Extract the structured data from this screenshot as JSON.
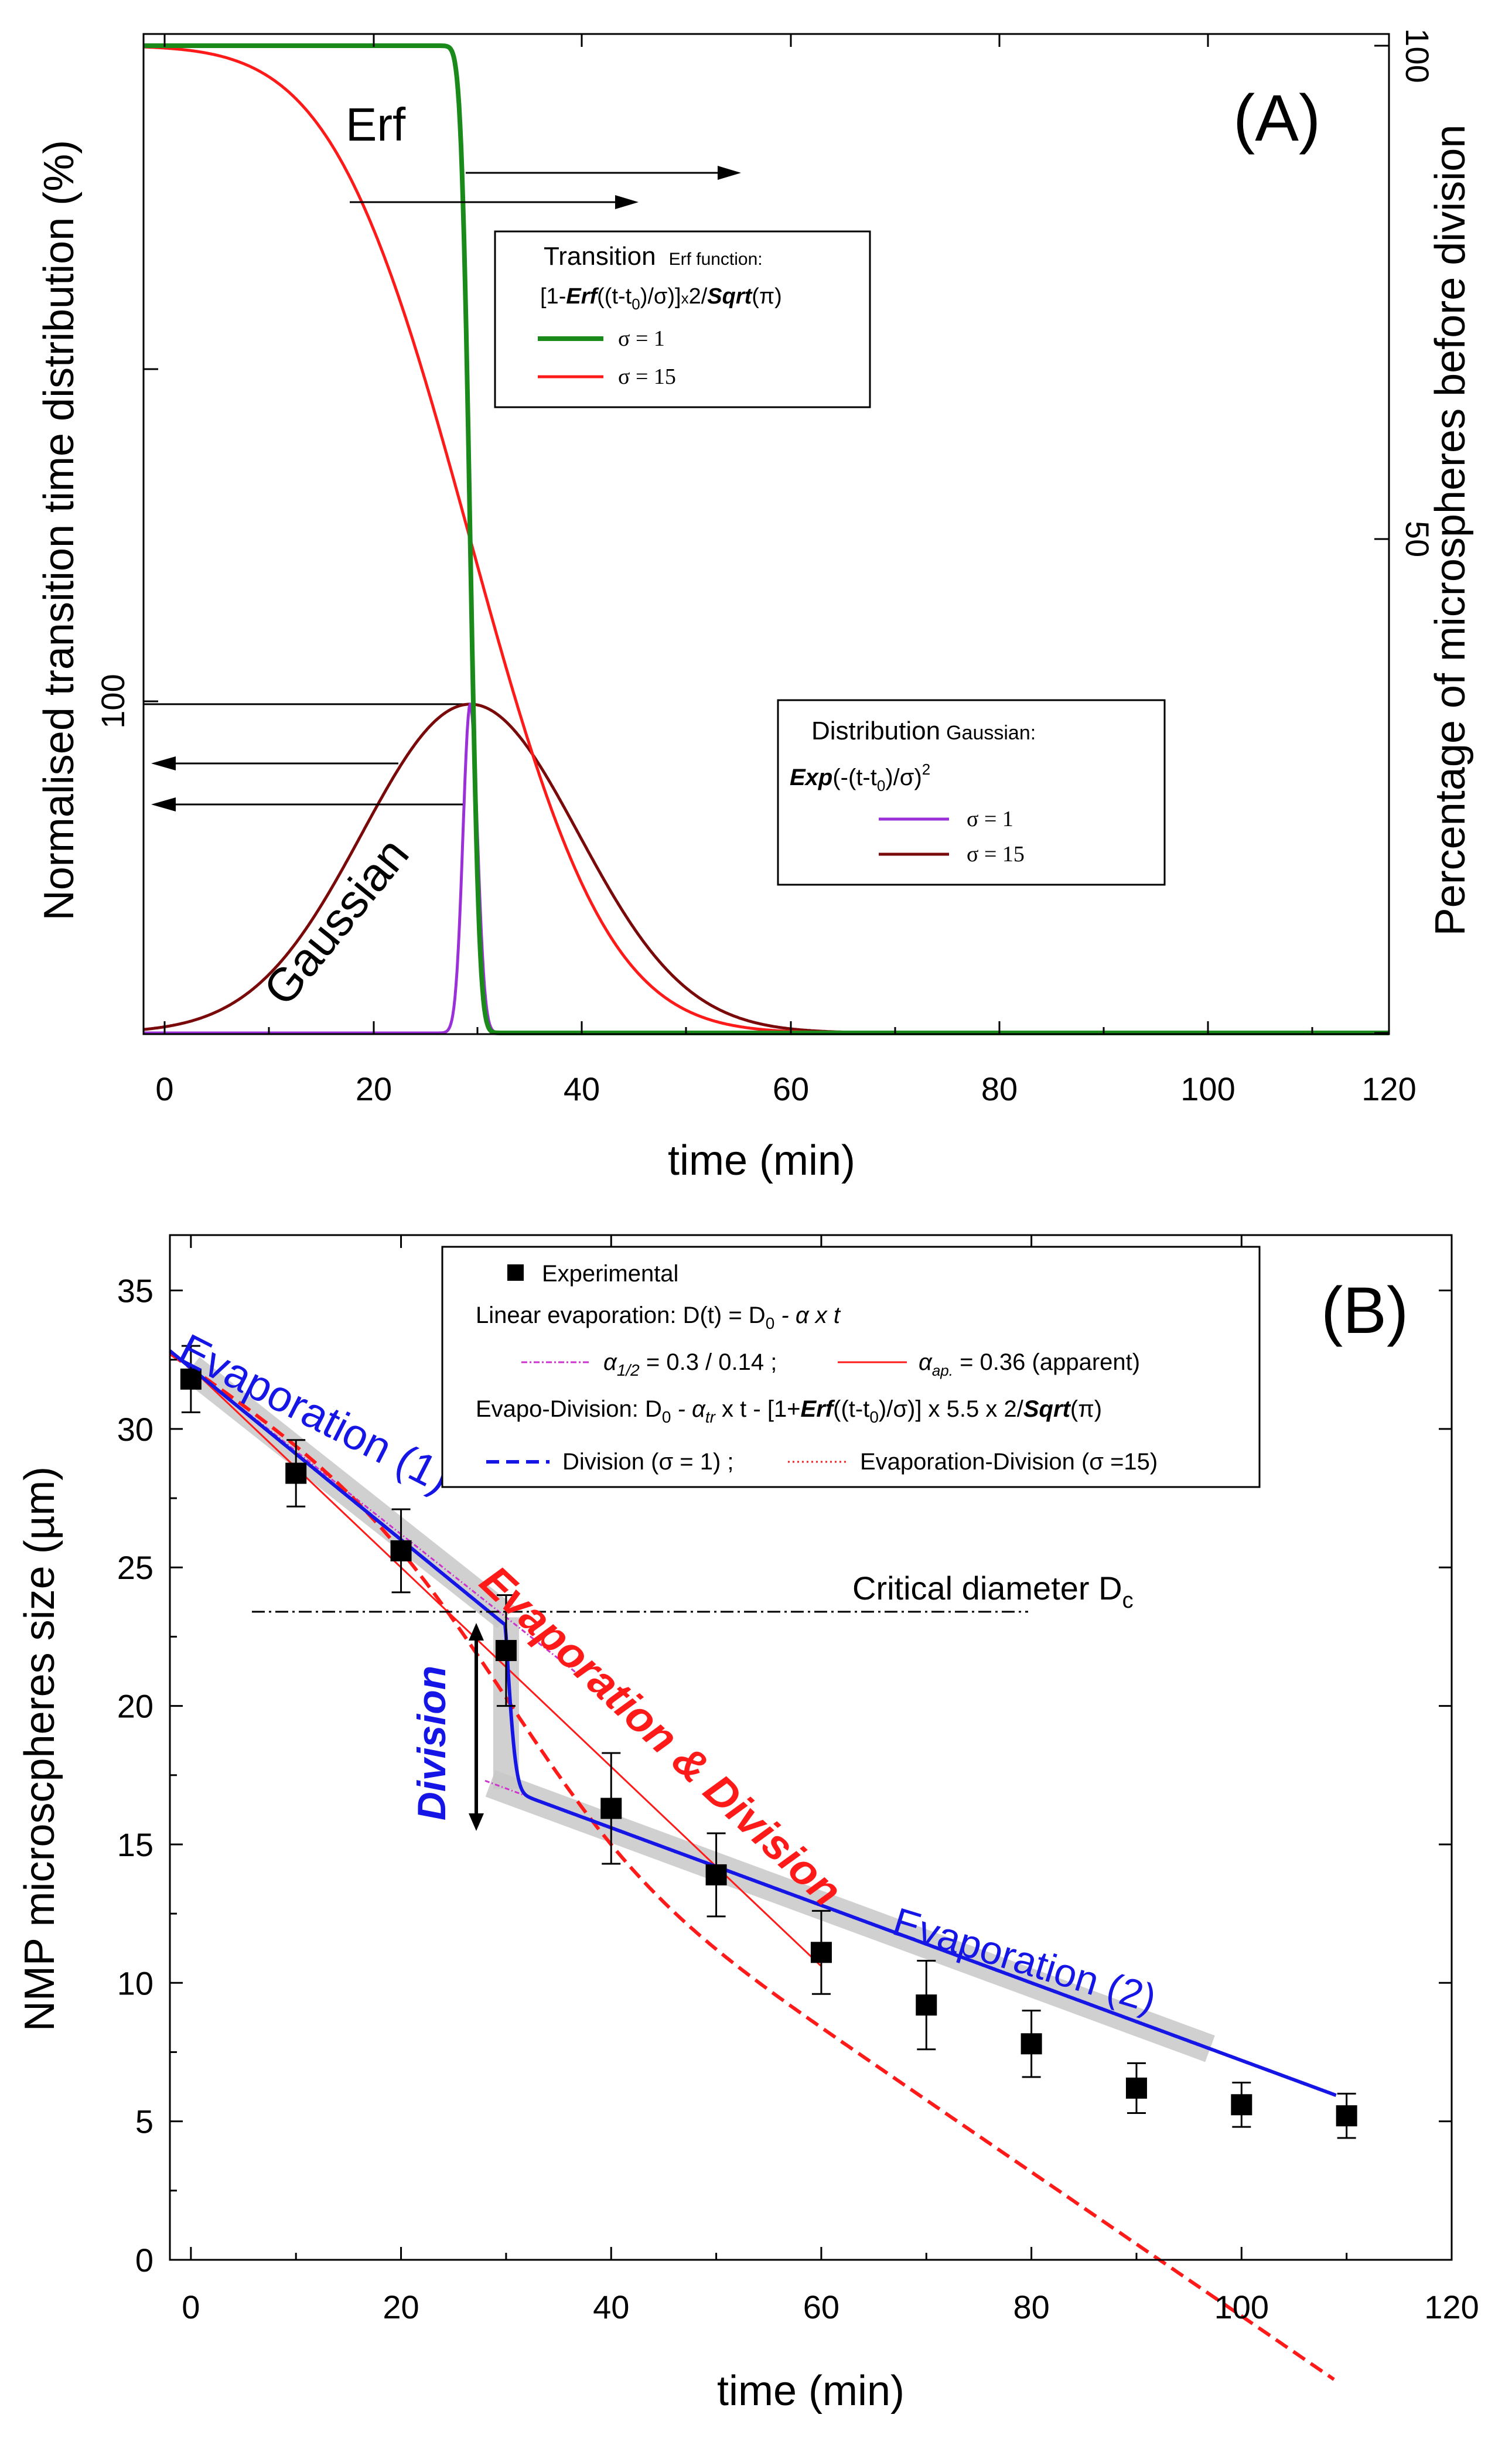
{
  "chart_data": [
    {
      "panel_label": "(A)",
      "type": "line",
      "title": "",
      "xlabel": "time (min)",
      "ylabel_left": "Normalised transition time distribution (%)",
      "ylabel_right": "Percentage of microspheres before division",
      "xlim": [
        -2,
        120
      ],
      "ylim": [
        0,
        100
      ],
      "xticks": [
        "0",
        "20",
        "40",
        "60",
        "80",
        "100",
        "120"
      ],
      "left_tick_labels": [
        {
          "value": 33.3,
          "label": "100"
        }
      ],
      "right_tick_labels": [
        {
          "value": 100,
          "label": "100"
        },
        {
          "value": 50,
          "label": "50"
        }
      ],
      "t0": 30,
      "annotations": {
        "erf": "Erf",
        "gaussian": "Gaussian"
      },
      "legend_erf": {
        "title_main": "Transition",
        "title_small": "Erf function:",
        "formula_parts": [
          "[1-",
          "Erf",
          "((t-t",
          "0",
          ")/σ)]",
          "x",
          "2/",
          "Sqrt",
          "(π)"
        ],
        "entries": [
          {
            "label": "σ = 1",
            "color": "#1a8a1a"
          },
          {
            "label": "σ = 15",
            "color": "#ff1a1a"
          }
        ]
      },
      "legend_gauss": {
        "title_main": "Distribution",
        "title_small": "Gaussian:",
        "formula_parts": [
          "Exp",
          "(-(t-t",
          "0",
          ")/σ)",
          "2"
        ],
        "entries": [
          {
            "label": "σ = 1",
            "color": "#9b30d9"
          },
          {
            "label": "σ = 15",
            "color": "#7a0a0a"
          }
        ]
      },
      "series": [
        {
          "name": "Erf σ = 1",
          "kind": "erf",
          "sigma": 1,
          "axis": "right",
          "color": "#1a8a1a"
        },
        {
          "name": "Erf σ = 15",
          "kind": "erf",
          "sigma": 15,
          "axis": "right",
          "color": "#ff1a1a"
        },
        {
          "name": "Gaussian σ = 1",
          "kind": "gauss",
          "sigma": 1,
          "axis": "left",
          "peak": 33.3,
          "color": "#9b30d9"
        },
        {
          "name": "Gaussian σ = 15",
          "kind": "gauss",
          "sigma": 15,
          "axis": "left",
          "peak": 33.3,
          "color": "#7a0a0a"
        }
      ]
    },
    {
      "panel_label": "(B)",
      "type": "scatter",
      "title": "",
      "xlabel": "time (min)",
      "ylabel": "NMP microscpheres size (µm)",
      "xlim": [
        -2,
        120
      ],
      "ylim": [
        0,
        37
      ],
      "xticks": [
        0,
        20,
        40,
        60,
        80,
        100,
        120
      ],
      "yticks": [
        0,
        5,
        10,
        15,
        20,
        25,
        30,
        35
      ],
      "experimental": {
        "x": [
          0,
          10,
          20,
          30,
          40,
          50,
          60,
          70,
          80,
          90,
          100,
          110
        ],
        "y": [
          31.8,
          28.4,
          25.6,
          22.0,
          16.3,
          13.9,
          11.1,
          9.2,
          7.8,
          6.2,
          5.6,
          5.2
        ],
        "err": [
          1.2,
          1.2,
          1.5,
          2.0,
          2.0,
          1.5,
          1.5,
          1.6,
          1.2,
          0.9,
          0.8,
          0.8
        ]
      },
      "critical_diameter": {
        "value": 23.4,
        "label": "Critical diameter D",
        "sub": "c"
      },
      "annotations": {
        "evaporation_1": "Evaporation (1)",
        "evaporation_2": "Evaporation (2)",
        "division": "Division",
        "evap_division": "Evaporation & Division"
      },
      "legend": {
        "experimental": "Experimental",
        "linear_evaporation": "Linear evaporation: D(t) = D",
        "linear_sub": "0",
        "linear_rest": " -  α x t",
        "alpha_half_pre": "α",
        "alpha_half_sub": "1/2",
        "alpha_half_post": " = 0.3 / 0.14 ;",
        "alpha_ap_pre": "α",
        "alpha_ap_sub": "ap.",
        "alpha_ap_post": " = 0.36 (apparent)",
        "evapo_division": "Evapo-Division: D",
        "evapo_sub": "0",
        "evapo_mid": " -  α",
        "evapo_tr": "tr",
        "evapo_rest": " x t  - [1+",
        "evapo_erf": "Erf",
        "evapo_rest2": "((t-t",
        "evapo_sub2": "0",
        "evapo_rest3": ")/σ)]  x 5.5 x 2/",
        "evapo_sqrt": "Sqrt",
        "evapo_pi": "(π)",
        "division_entry": "Division (σ = 1) ;",
        "evap_div_entry": "Evaporation-Division (σ =15)"
      },
      "models": {
        "D0": 32.2,
        "alpha_1": 0.3,
        "alpha_2": 0.14,
        "alpha_apparent": 0.36,
        "alpha_tr": 0.14,
        "drop": 5.5,
        "t0": 30,
        "colors": {
          "division": "#1515e6",
          "evap_division": "#ff1a1a",
          "apparent": "#ff1a1a",
          "alpha_half": "#cc33cc",
          "shade": "#c8c8c8"
        }
      }
    }
  ]
}
